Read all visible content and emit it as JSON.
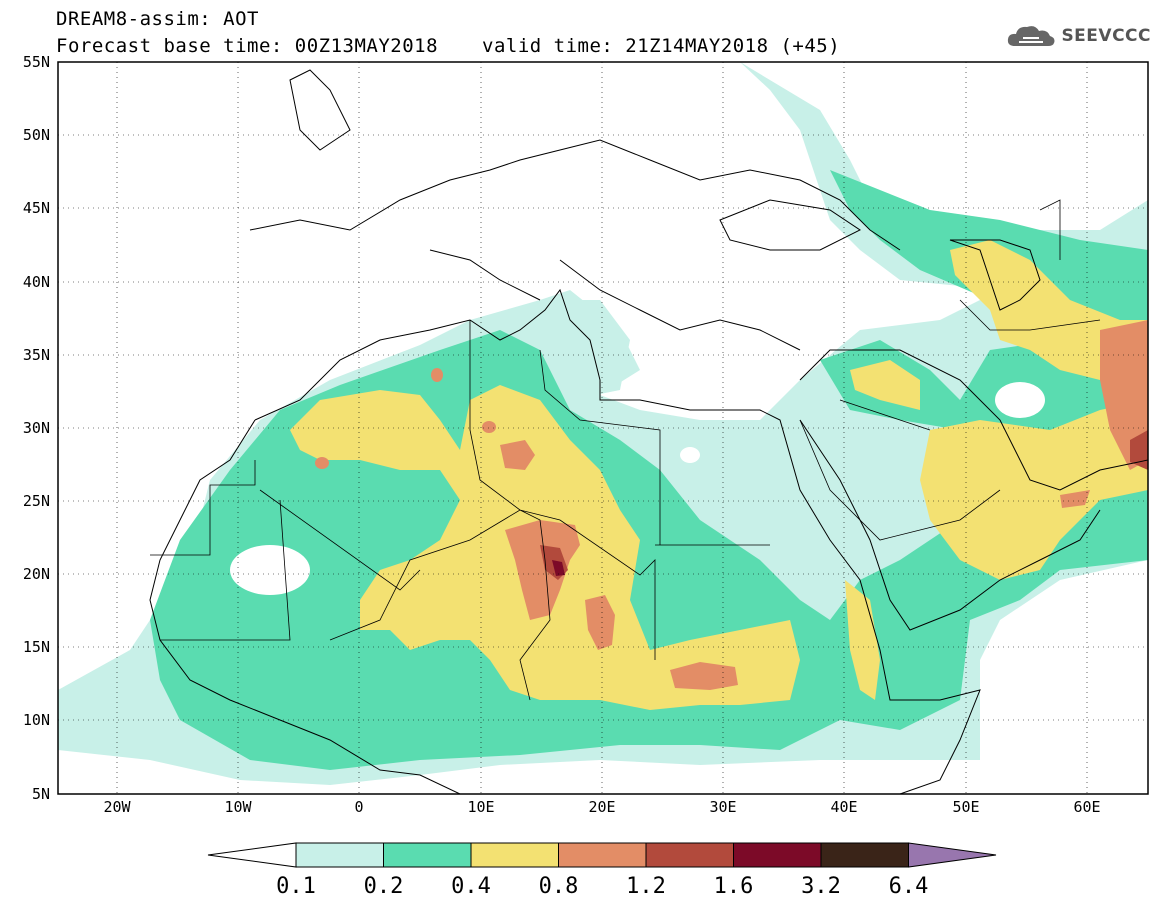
{
  "header": {
    "title_line1": "DREAM8-assim: AOT",
    "title_base": "Forecast base time: 00Z13MAY2018",
    "title_valid": "valid time: 21Z14MAY2018 (+45)",
    "logo_text": "SEEVCCC"
  },
  "axes": {
    "lat_labels": [
      "55N",
      "50N",
      "45N",
      "40N",
      "35N",
      "30N",
      "25N",
      "20N",
      "15N",
      "10N",
      "5N"
    ],
    "lon_labels": [
      "20W",
      "10W",
      "0",
      "10E",
      "20E",
      "30E",
      "40E",
      "50E",
      "60E"
    ],
    "lon_range": [
      -25,
      65
    ],
    "lat_range": [
      5,
      55
    ],
    "grid": "dotted"
  },
  "colorbar": {
    "labels": [
      "0.1",
      "0.2",
      "0.4",
      "0.8",
      "1.2",
      "1.6",
      "3.2",
      "6.4"
    ],
    "colors": [
      "#ffffff",
      "#c8f0e8",
      "#5adcb0",
      "#f3e172",
      "#e38d66",
      "#b24a3c",
      "#7c0a28",
      "#3a2418",
      "#9876ae"
    ]
  },
  "fields": {
    "c01": "#c8f0e8",
    "c02": "#5adcb0",
    "c04": "#f3e172",
    "c08": "#e38d66",
    "c12": "#b24a3c",
    "c16": "#7c0a28"
  }
}
